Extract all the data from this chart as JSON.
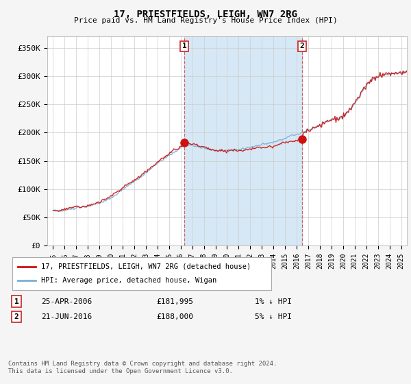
{
  "title": "17, PRIESTFIELDS, LEIGH, WN7 2RG",
  "subtitle": "Price paid vs. HM Land Registry's House Price Index (HPI)",
  "ylabel_ticks": [
    "£0",
    "£50K",
    "£100K",
    "£150K",
    "£200K",
    "£250K",
    "£300K",
    "£350K"
  ],
  "ytick_values": [
    0,
    50000,
    100000,
    150000,
    200000,
    250000,
    300000,
    350000
  ],
  "ylim": [
    0,
    370000
  ],
  "xlim_start": 1994.5,
  "xlim_end": 2025.5,
  "hpi_color": "#7ab0d4",
  "hpi_fill_color": "#d6e8f5",
  "price_color": "#cc1111",
  "marker_color": "#cc1111",
  "dashed_color": "#cc4444",
  "sale1_year": 2006.31,
  "sale1_price": 181995,
  "sale2_year": 2016.47,
  "sale2_price": 188000,
  "sale1_label": "1",
  "sale2_label": "2",
  "legend_line1": "17, PRIESTFIELDS, LEIGH, WN7 2RG (detached house)",
  "legend_line2": "HPI: Average price, detached house, Wigan",
  "annotation1_date": "25-APR-2006",
  "annotation1_price": "£181,995",
  "annotation1_hpi": "1% ↓ HPI",
  "annotation2_date": "21-JUN-2016",
  "annotation2_price": "£188,000",
  "annotation2_hpi": "5% ↓ HPI",
  "footer": "Contains HM Land Registry data © Crown copyright and database right 2024.\nThis data is licensed under the Open Government Licence v3.0.",
  "background_color": "#f5f5f5",
  "plot_bg_color": "#ffffff"
}
